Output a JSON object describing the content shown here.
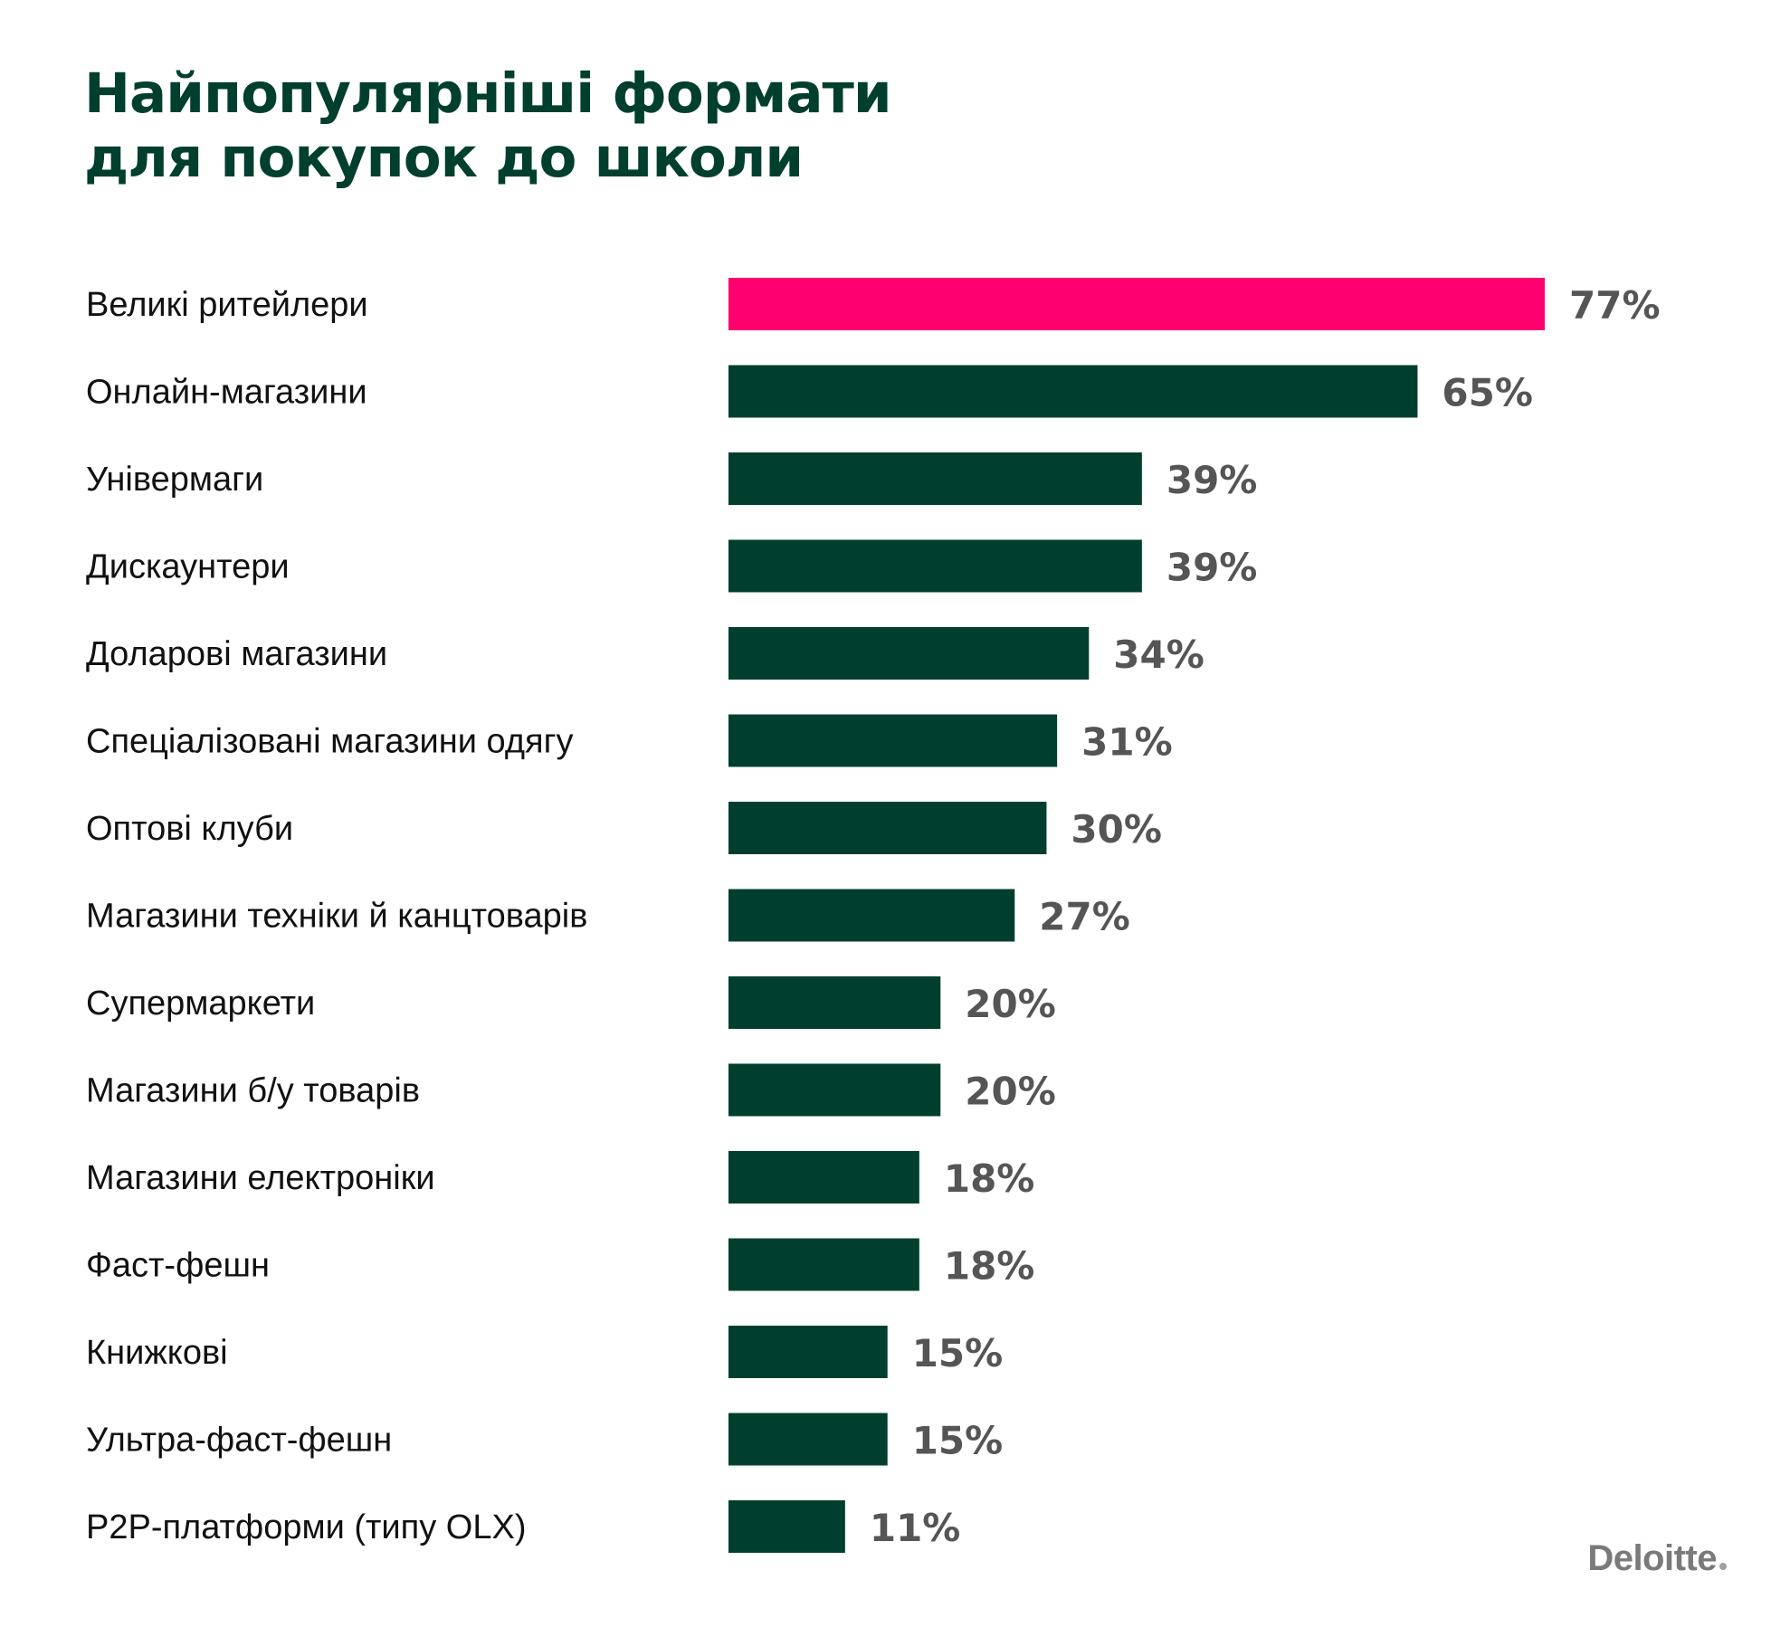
{
  "colors": {
    "highlight": "#ff006e",
    "bar": "#003f2d",
    "title": "#003f2d",
    "value_text": "#555555",
    "label_text": "#111111"
  },
  "chart_data": {
    "type": "bar",
    "orientation": "horizontal",
    "title_lines": [
      "Найпопулярніші формати",
      "для покупок до школи"
    ],
    "unit": "%",
    "categories": [
      "Великі ритейлери",
      "Онлайн-магазини",
      "Універмаги",
      "Дискаунтери",
      "Доларові магазини",
      "Спеціалізовані магазини одягу",
      "Оптові клуби",
      "Магазини техніки й канцтоварів",
      "Супермаркети",
      "Магазини б/у товарів",
      "Магазини електроніки",
      "Фаст-фешн",
      "Книжкові",
      "Ультра-фаст-фешн",
      "P2P-платформи (типу OLX)"
    ],
    "values": [
      77,
      65,
      39,
      39,
      34,
      31,
      30,
      27,
      20,
      20,
      18,
      18,
      15,
      15,
      11
    ],
    "value_labels": [
      "77%",
      "65%",
      "39%",
      "39%",
      "34%",
      "31%",
      "30%",
      "27%",
      "20%",
      "20%",
      "18%",
      "18%",
      "15%",
      "15%",
      "11%"
    ],
    "highlight_index": 0,
    "xlim": [
      0,
      77
    ],
    "grid": false,
    "legend": "none"
  },
  "brand": {
    "logo_text": "Deloitte"
  }
}
